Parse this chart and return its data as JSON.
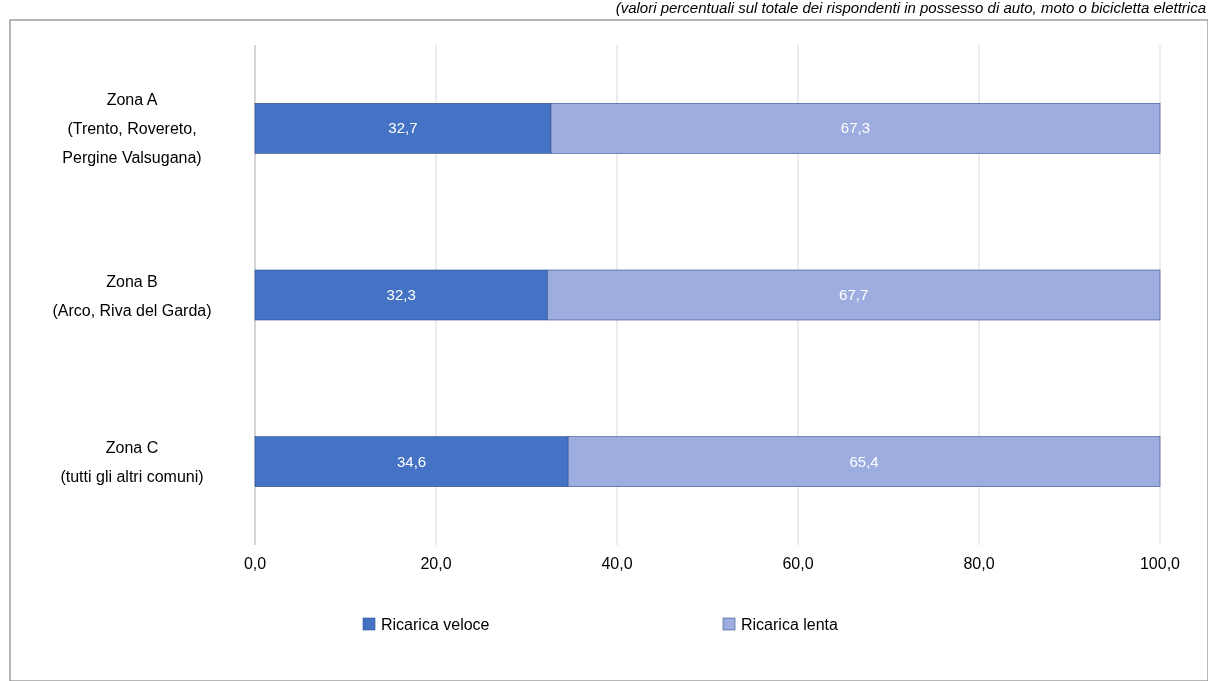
{
  "chart_data": {
    "type": "bar",
    "orientation": "horizontal",
    "stacked": true,
    "subtitle": "(valori percentuali sul totale dei rispondenti in possesso di auto, moto o bicicletta elettrica",
    "categories": [
      "Zona A\n(Trento, Rovereto,\nPergine Valsugana)",
      "Zona B\n(Arco, Riva del Garda)",
      "Zona C\n(tutti gli altri comuni)"
    ],
    "series": [
      {
        "name": "Ricarica veloce",
        "color": "#4472c4",
        "values": [
          32.7,
          32.3,
          34.6
        ],
        "value_labels": [
          "32,7",
          "32,3",
          "34,6"
        ]
      },
      {
        "name": "Ricarica lenta",
        "color": "#9dade0",
        "values": [
          67.3,
          67.7,
          65.4
        ],
        "value_labels": [
          "67,3",
          "67,7",
          "65,4"
        ]
      }
    ],
    "xlim": [
      0,
      100
    ],
    "xticks": [
      {
        "value": 0,
        "label": "0,0"
      },
      {
        "value": 20,
        "label": "20,0"
      },
      {
        "value": 40,
        "label": "40,0"
      },
      {
        "value": 60,
        "label": "60,0"
      },
      {
        "value": 80,
        "label": "80,0"
      },
      {
        "value": 100,
        "label": "100,0"
      }
    ],
    "grid": "x",
    "legend": "bottom"
  }
}
